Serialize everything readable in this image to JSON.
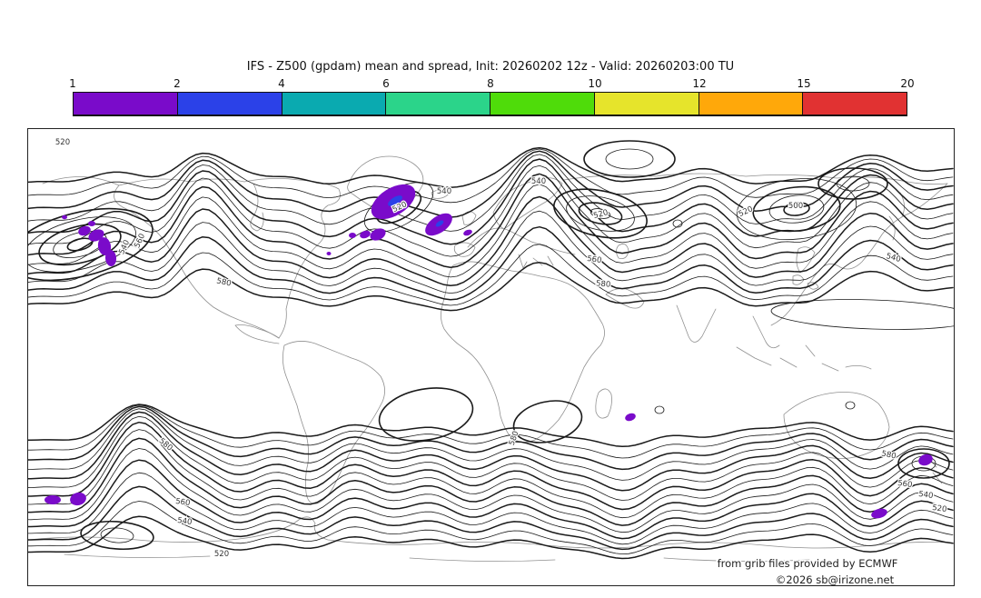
{
  "title": "IFS - Z500 (gpdam) mean and spread, Init: 20260202 12z - Valid: 20260203:00 TU",
  "colorbar": {
    "ticks": [
      "1",
      "2",
      "4",
      "6",
      "8",
      "10",
      "12",
      "15",
      "20"
    ],
    "segments": [
      {
        "range": "1-2",
        "color": "#7a0bca"
      },
      {
        "range": "2-4",
        "color": "#2b41e8"
      },
      {
        "range": "4-6",
        "color": "#0aaab0"
      },
      {
        "range": "6-8",
        "color": "#2bd48a"
      },
      {
        "range": "8-10",
        "color": "#4fdc0a"
      },
      {
        "range": "10-12",
        "color": "#e6e42b"
      },
      {
        "range": "12-15",
        "color": "#ffa80a"
      },
      {
        "range": "15-20",
        "color": "#e13232"
      }
    ],
    "border_color": "#111111"
  },
  "map": {
    "projection": "global cylindrical",
    "contour_color": "#1a1a1a",
    "coast_color": "#909090",
    "spread_level1_color": "#7a0bca",
    "spread_level2_color": "#2b41e8",
    "contour_labels": [
      {
        "text": "520"
      },
      {
        "text": "560"
      },
      {
        "text": "540"
      },
      {
        "text": "580"
      },
      {
        "text": "520"
      },
      {
        "text": "540"
      },
      {
        "text": "540"
      },
      {
        "text": "520"
      },
      {
        "text": "560"
      },
      {
        "text": "580"
      },
      {
        "text": "500"
      },
      {
        "text": "520"
      },
      {
        "text": "540"
      },
      {
        "text": "580"
      },
      {
        "text": "560"
      },
      {
        "text": "540"
      },
      {
        "text": "520"
      },
      {
        "text": "580"
      },
      {
        "text": "580"
      },
      {
        "text": "560"
      },
      {
        "text": "540"
      },
      {
        "text": "520"
      }
    ],
    "attribution_line1": "from grib files provided by ECMWF",
    "attribution_line2": "©2026 sb@irizone.net"
  }
}
